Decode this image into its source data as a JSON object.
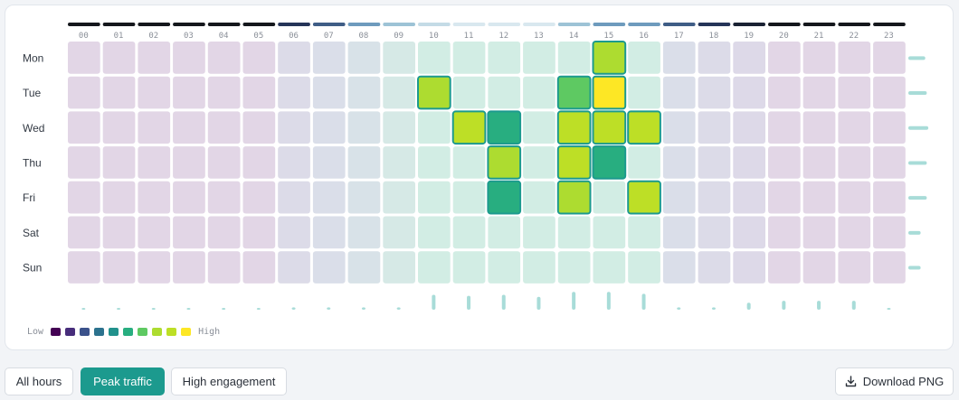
{
  "chart_data": {
    "type": "heatmap",
    "x_labels": [
      "00",
      "01",
      "02",
      "03",
      "04",
      "05",
      "06",
      "07",
      "08",
      "09",
      "10",
      "11",
      "12",
      "13",
      "14",
      "15",
      "16",
      "17",
      "18",
      "19",
      "20",
      "21",
      "22",
      "23"
    ],
    "y_labels": [
      "Mon",
      "Tue",
      "Wed",
      "Thu",
      "Fri",
      "Sat",
      "Sun"
    ],
    "values": [
      [
        1,
        1,
        1,
        1,
        1,
        1,
        1,
        1,
        1,
        1,
        2,
        2,
        2,
        2,
        2,
        8,
        2,
        1,
        1,
        1,
        1,
        1,
        1,
        1
      ],
      [
        1,
        1,
        1,
        1,
        1,
        1,
        1,
        1,
        1,
        1,
        8,
        2,
        2,
        2,
        7,
        10,
        2,
        1,
        1,
        1,
        1,
        1,
        1,
        1
      ],
      [
        1,
        1,
        1,
        1,
        1,
        1,
        1,
        1,
        1,
        1,
        2,
        9,
        6,
        2,
        9,
        9,
        9,
        1,
        1,
        1,
        1,
        1,
        1,
        1
      ],
      [
        1,
        1,
        1,
        1,
        1,
        1,
        1,
        1,
        1,
        1,
        2,
        2,
        8,
        2,
        9,
        6,
        2,
        1,
        1,
        1,
        1,
        1,
        1,
        1
      ],
      [
        1,
        1,
        1,
        1,
        1,
        1,
        1,
        1,
        1,
        1,
        2,
        2,
        6,
        2,
        8,
        2,
        9,
        1,
        1,
        1,
        1,
        1,
        1,
        1
      ],
      [
        1,
        1,
        1,
        1,
        1,
        1,
        1,
        1,
        1,
        1,
        2,
        2,
        2,
        2,
        2,
        2,
        2,
        1,
        1,
        1,
        1,
        1,
        1,
        1
      ],
      [
        1,
        1,
        1,
        1,
        1,
        1,
        1,
        1,
        1,
        1,
        2,
        2,
        2,
        2,
        2,
        2,
        2,
        1,
        1,
        1,
        1,
        1,
        1,
        1
      ]
    ],
    "row_totals": [
      0.55,
      0.6,
      0.65,
      0.6,
      0.6,
      0.4,
      0.4
    ],
    "column_totals": [
      0.05,
      0.05,
      0.05,
      0.05,
      0.05,
      0.05,
      0.12,
      0.12,
      0.12,
      0.12,
      0.75,
      0.7,
      0.75,
      0.65,
      0.9,
      0.9,
      0.8,
      0.12,
      0.12,
      0.35,
      0.45,
      0.45,
      0.45,
      0.05
    ],
    "column_intensity": [
      1,
      1,
      1,
      1,
      1,
      1,
      3,
      4,
      5,
      6,
      7,
      8,
      8,
      8,
      6,
      5,
      5,
      4,
      3,
      2,
      1,
      1,
      1,
      1
    ],
    "legend": {
      "low": "Low",
      "high": "High"
    },
    "scale_colors": [
      "#440154",
      "#472d7b",
      "#3b528b",
      "#2c728e",
      "#21918c",
      "#28ae80",
      "#5ec962",
      "#addc30",
      "#bddf26",
      "#fde725"
    ]
  },
  "buttons": {
    "all_hours": "All hours",
    "peak_traffic": "Peak traffic",
    "high_engagement": "High engagement",
    "download": "Download PNG"
  }
}
